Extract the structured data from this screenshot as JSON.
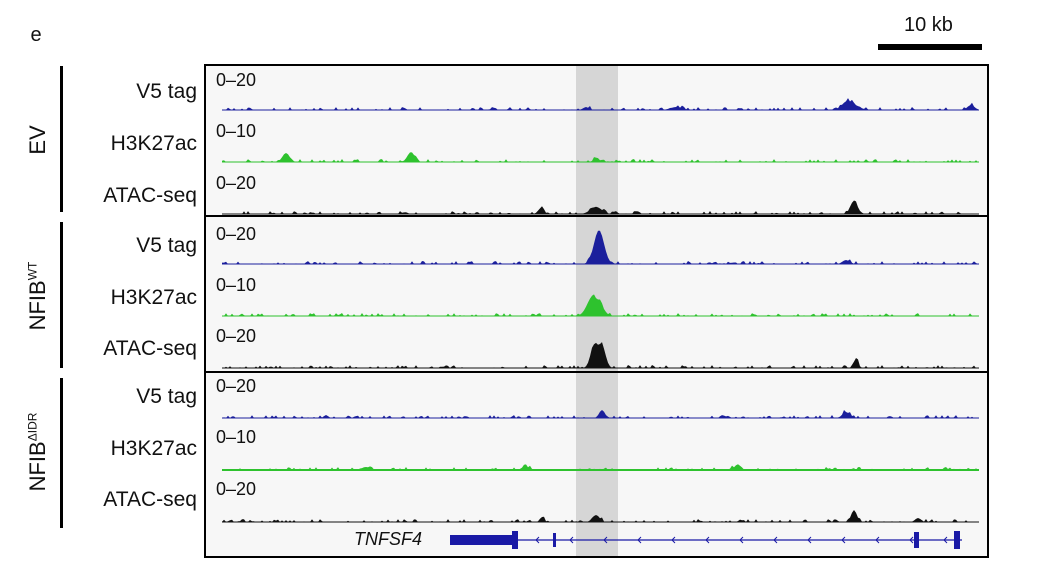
{
  "panel_tag": "e",
  "scale_bar": {
    "label": "10 kb"
  },
  "groups": [
    {
      "name": "EV",
      "superscript": ""
    },
    {
      "name": "NFIB",
      "superscript": "WT"
    },
    {
      "name": "NFIB",
      "superscript": "ΔIDR"
    }
  ],
  "tracks": [
    {
      "group": 0,
      "label": "V5 tag",
      "range": "0–20",
      "color": "#1b1f9c"
    },
    {
      "group": 0,
      "label": "H3K27ac",
      "range": "0–10",
      "color": "#2ec22e"
    },
    {
      "group": 0,
      "label": "ATAC-seq",
      "range": "0–20",
      "color": "#111111"
    },
    {
      "group": 1,
      "label": "V5 tag",
      "range": "0–20",
      "color": "#1b1f9c"
    },
    {
      "group": 1,
      "label": "H3K27ac",
      "range": "0–10",
      "color": "#2ec22e"
    },
    {
      "group": 1,
      "label": "ATAC-seq",
      "range": "0–20",
      "color": "#111111"
    },
    {
      "group": 2,
      "label": "V5 tag",
      "range": "0–20",
      "color": "#1b1f9c"
    },
    {
      "group": 2,
      "label": "H3K27ac",
      "range": "0–10",
      "color": "#2ec22e"
    },
    {
      "group": 2,
      "label": "ATAC-seq",
      "range": "0–20",
      "color": "#111111"
    }
  ],
  "highlight_color": "#d6d6d6",
  "gene": {
    "name": "TNFSF4",
    "color": "#1a1aa6"
  }
}
